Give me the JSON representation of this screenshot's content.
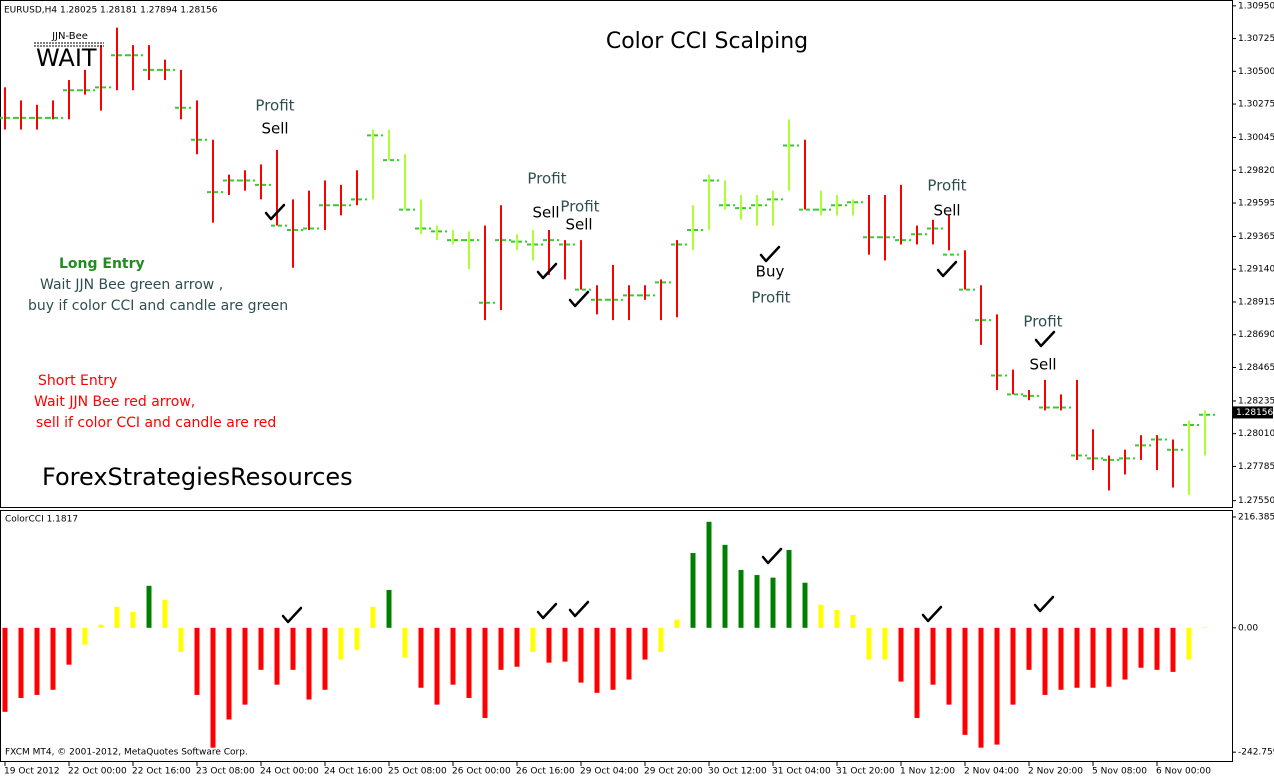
{
  "chart_data": [
    {
      "type": "stock",
      "title": "Color CCI Scalping",
      "symbol_label": "EURUSD,H4  1.28025 1.28181 1.27894 1.28156",
      "indicator_label": "JJN-Bee",
      "signal": "WAIT",
      "high": [
        1.3039,
        1.303,
        1.3027,
        1.303,
        1.3044,
        1.3051,
        1.3068,
        1.308,
        1.3068,
        1.3068,
        1.3058,
        1.3051,
        1.303,
        1.3003,
        1.2979,
        1.2982,
        1.2986,
        1.2996,
        1.2962,
        1.2968,
        1.2975,
        1.2972,
        1.2982,
        1.301,
        1.301,
        1.2993,
        1.2962,
        1.2944,
        1.2941,
        1.294,
        1.2944,
        1.2958,
        1.2938,
        1.2941,
        1.2941,
        1.2934,
        1.2934,
        1.2903,
        1.2917,
        1.2903,
        1.2903,
        1.2907,
        1.2934,
        1.2958,
        1.2979,
        1.2975,
        1.2965,
        1.2965,
        1.2968,
        1.3017,
        1.3003,
        1.2968,
        1.2965,
        1.2962,
        1.2965,
        1.2965,
        1.2972,
        1.2944,
        1.2948,
        1.2951,
        1.2927,
        1.2903,
        1.2883,
        1.2845,
        1.2831,
        1.2838,
        1.2828,
        1.2838,
        1.2804,
        1.2786,
        1.279,
        1.28,
        1.28,
        1.2797,
        1.281,
        1.2817
      ],
      "low": [
        1.301,
        1.301,
        1.301,
        1.3017,
        1.3017,
        1.3034,
        1.3023,
        1.3037,
        1.3037,
        1.3044,
        1.3044,
        1.3017,
        1.2993,
        1.2946,
        1.2965,
        1.2968,
        1.2962,
        1.2944,
        1.2915,
        1.2941,
        1.2941,
        1.2951,
        1.2958,
        1.2962,
        1.2989,
        1.2955,
        1.2938,
        1.2934,
        1.2931,
        1.2914,
        1.2879,
        1.2886,
        1.2927,
        1.292,
        1.291,
        1.2907,
        1.29,
        1.2883,
        1.2879,
        1.2879,
        1.2893,
        1.2879,
        1.2881,
        1.2927,
        1.2941,
        1.2955,
        1.2948,
        1.2944,
        1.2944,
        1.2968,
        1.2955,
        1.2951,
        1.2951,
        1.2951,
        1.2924,
        1.292,
        1.2931,
        1.2931,
        1.2931,
        1.2927,
        1.29,
        1.2862,
        1.2831,
        1.2828,
        1.2824,
        1.2817,
        1.2817,
        1.2783,
        1.2776,
        1.2762,
        1.2773,
        1.2783,
        1.2776,
        1.2764,
        1.2759,
        1.2786
      ],
      "close": [
        1.3018,
        1.3018,
        1.3018,
        1.3018,
        1.3037,
        1.3037,
        1.3039,
        1.3061,
        1.3061,
        1.3051,
        1.3051,
        1.3025,
        1.3003,
        1.2967,
        1.2975,
        1.2975,
        1.2972,
        1.2944,
        1.2941,
        1.2942,
        1.2958,
        1.2958,
        1.2962,
        1.3006,
        1.2989,
        1.2955,
        1.2942,
        1.294,
        1.2934,
        1.2934,
        1.2891,
        1.2934,
        1.2933,
        1.2931,
        1.2934,
        1.2931,
        1.29,
        1.2893,
        1.2893,
        1.2896,
        1.2896,
        1.2905,
        1.2931,
        1.2941,
        1.2975,
        1.2958,
        1.2956,
        1.2958,
        1.2962,
        1.2999,
        1.2955,
        1.2955,
        1.2958,
        1.296,
        1.2936,
        1.2936,
        1.2934,
        1.2938,
        1.2942,
        1.2924,
        1.29,
        1.2879,
        1.2841,
        1.2828,
        1.2827,
        1.2819,
        1.2819,
        1.2786,
        1.2784,
        1.2783,
        1.2784,
        1.2793,
        1.2797,
        1.279,
        1.2807,
        1.2814
      ],
      "colors": [
        "#ff0000",
        "#ff0000",
        "#ff0000",
        "#ff0000",
        "#ff0000",
        "#ff0000",
        "#ff0000",
        "#ff0000",
        "#ff0000",
        "#ff0000",
        "#ff0000",
        "#ff0000",
        "#ff0000",
        "#ff0000",
        "#ff0000",
        "#ff0000",
        "#ff0000",
        "#ff0000",
        "#ff0000",
        "#ff0000",
        "#ff0000",
        "#ff0000",
        "#ff0000",
        "#adff2f",
        "#adff2f",
        "#adff2f",
        "#adff2f",
        "#adff2f",
        "#adff2f",
        "#adff2f",
        "#ff0000",
        "#ff0000",
        "#adff2f",
        "#adff2f",
        "#ff0000",
        "#ff0000",
        "#ff0000",
        "#ff0000",
        "#ff0000",
        "#ff0000",
        "#ff0000",
        "#ff0000",
        "#ff0000",
        "#adff2f",
        "#adff2f",
        "#adff2f",
        "#adff2f",
        "#adff2f",
        "#adff2f",
        "#adff2f",
        "#ff0000",
        "#adff2f",
        "#adff2f",
        "#adff2f",
        "#ff0000",
        "#ff0000",
        "#ff0000",
        "#ff0000",
        "#ff0000",
        "#ff0000",
        "#ff0000",
        "#ff0000",
        "#ff0000",
        "#ff0000",
        "#ff0000",
        "#ff0000",
        "#ff0000",
        "#ff0000",
        "#ff0000",
        "#ff0000",
        "#ff0000",
        "#ff0000",
        "#ff0000",
        "#ff0000",
        "#adff2f",
        "#adff2f"
      ],
      "close_color": "#33cc33",
      "ylim": [
        1.2752,
        1.3099
      ],
      "yticks": [
        {
          "value": 1.3095,
          "label": "1.30950"
        },
        1.30725,
        {
          "value": 1.305,
          "label": "1.30500"
        },
        1.30275,
        1.30045,
        {
          "value": 1.2982,
          "label": "1.29820"
        },
        1.29595,
        1.29365,
        {
          "value": 1.2914,
          "label": "1.29140"
        },
        1.28915,
        {
          "value": 1.2869,
          "label": "1.28690"
        },
        1.28465,
        1.28235,
        {
          "value": 1.2801,
          "label": "1.28010"
        },
        1.27785,
        {
          "value": 1.2755,
          "label": "1.27550"
        }
      ],
      "last_price": {
        "value": 1.28156,
        "label": "1.28156"
      },
      "annotations": [
        "Profit",
        "Sell",
        "Profit",
        "Sell",
        "Profit",
        "Sell",
        "Buy",
        "Profit",
        "Profit",
        "Sell",
        "Profit",
        "Sell"
      ],
      "notes": [
        "Long Entry",
        "Wait JJN Bee  green arrow ,",
        "buy if color CCI and candle are green",
        "Short Entry",
        "Wait JJN Bee  red arrow,",
        "sell if color CCI and candle are red",
        "ForexStrategiesResources"
      ]
    },
    {
      "type": "bar",
      "title": "ColorCCI 1.1817",
      "categories": [
        "19 Oct 2012",
        null,
        null,
        null,
        "22 Oct 00:00",
        null,
        null,
        null,
        "22 Oct 16:00",
        null,
        null,
        null,
        "23 Oct 08:00",
        null,
        null,
        null,
        "24 Oct 00:00",
        null,
        null,
        null,
        "24 Oct 16:00",
        null,
        null,
        null,
        "25 Oct 08:00",
        null,
        null,
        null,
        "26 Oct 00:00",
        null,
        null,
        null,
        "26 Oct 16:00",
        null,
        null,
        null,
        "29 Oct 04:00",
        null,
        null,
        null,
        "29 Oct 20:00",
        null,
        null,
        null,
        "30 Oct 12:00",
        null,
        null,
        null,
        "31 Oct 04:00",
        null,
        null,
        null,
        "31 Oct 20:00",
        null,
        null,
        null,
        "1 Nov 12:00",
        null,
        null,
        null,
        "2 Nov 04:00",
        null,
        null,
        null,
        "2 Nov 20:00",
        null,
        null,
        null,
        "5 Nov 08:00",
        null,
        null,
        null,
        "6 Nov 00:00",
        null,
        null,
        null
      ],
      "values": [
        -164,
        -137,
        -131,
        -121,
        -72,
        -33,
        6,
        41,
        31,
        82,
        55,
        -47,
        -131,
        -234,
        -179,
        -150,
        -82,
        -111,
        -82,
        -140,
        -121,
        -62,
        -43,
        41,
        74,
        -58,
        -117,
        -150,
        -111,
        -137,
        -176,
        -82,
        -76,
        -47,
        -68,
        -66,
        -107,
        -127,
        -121,
        -101,
        -62,
        -47,
        16,
        146,
        207,
        162,
        113,
        103,
        98,
        152,
        88,
        45,
        35,
        25,
        -62,
        -62,
        -105,
        -176,
        -111,
        -150,
        -209,
        -234,
        -228,
        -150,
        -82,
        -131,
        -121,
        -117,
        -117,
        -115,
        -101,
        -78,
        -82,
        -86,
        -62,
        1
      ],
      "colors": [
        "#ff0000",
        "#ff0000",
        "#ff0000",
        "#ff0000",
        "#ff0000",
        "#ffff00",
        "#ffff00",
        "#ffff00",
        "#ffff00",
        "#008000",
        "#ffff00",
        "#ffff00",
        "#ff0000",
        "#ff0000",
        "#ff0000",
        "#ff0000",
        "#ff0000",
        "#ff0000",
        "#ff0000",
        "#ff0000",
        "#ff0000",
        "#ffff00",
        "#ffff00",
        "#ffff00",
        "#008000",
        "#ffff00",
        "#ff0000",
        "#ff0000",
        "#ff0000",
        "#ff0000",
        "#ff0000",
        "#ff0000",
        "#ff0000",
        "#ffff00",
        "#ff0000",
        "#ff0000",
        "#ff0000",
        "#ff0000",
        "#ff0000",
        "#ff0000",
        "#ff0000",
        "#ffff00",
        "#ffff00",
        "#008000",
        "#008000",
        "#008000",
        "#008000",
        "#008000",
        "#008000",
        "#008000",
        "#008000",
        "#ffff00",
        "#ffff00",
        "#ffff00",
        "#ffff00",
        "#ffff00",
        "#ff0000",
        "#ff0000",
        "#ff0000",
        "#ff0000",
        "#ff0000",
        "#ff0000",
        "#ff0000",
        "#ff0000",
        "#ff0000",
        "#ff0000",
        "#ff0000",
        "#ff0000",
        "#ff0000",
        "#ff0000",
        "#ff0000",
        "#ff0000",
        "#ff0000",
        "#ff0000",
        "#ffff00",
        "#ffff00"
      ],
      "ylim": [
        -260,
        230
      ],
      "yticks": [
        216.385,
        {
          "value": 0,
          "label": "0.00"
        },
        -242.759
      ]
    }
  ],
  "footer": "FXCM MT4, © 2001-2012, MetaQuotes Software Corp."
}
